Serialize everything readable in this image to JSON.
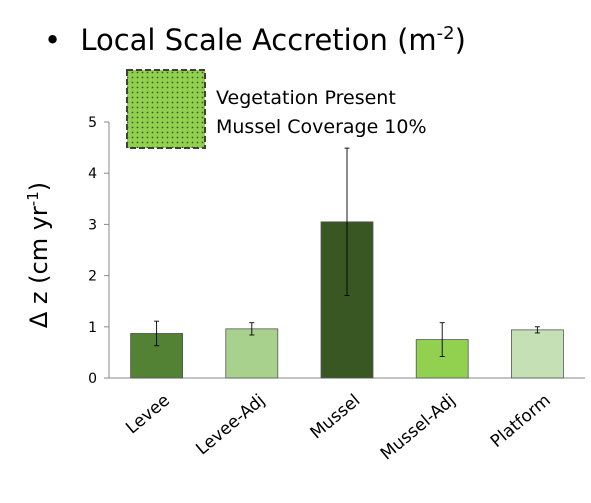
{
  "chart_data": {
    "type": "bar",
    "title_bullet": "•",
    "title": "Local Scale Accretion (m",
    "title_sup": "-2",
    "title_end": ")",
    "ylabel": "Δ z (cm yr",
    "ylabel_sup": "-1",
    "ylabel_end": ")",
    "xlabel": "",
    "ylim": [
      0,
      5
    ],
    "yticks": [
      "0",
      "1",
      "2",
      "3",
      "4",
      "5"
    ],
    "grid": false,
    "categories": [
      "Levee",
      "Levee-Adj",
      "Mussel",
      "Mussel-Adj",
      "Platform"
    ],
    "values": [
      0.87,
      0.96,
      3.05,
      0.75,
      0.94
    ],
    "errors": [
      0.24,
      0.12,
      1.44,
      0.33,
      0.06
    ],
    "bar_colors": [
      "#548235",
      "#a9d18e",
      "#385723",
      "#92d050",
      "#c5e0b4"
    ],
    "legend": {
      "placement": "top-left",
      "lines": [
        "Vegetation Present",
        "Mussel Coverage 10%"
      ],
      "swatch_color": "#92d050",
      "swatch_border": "#404040"
    }
  }
}
